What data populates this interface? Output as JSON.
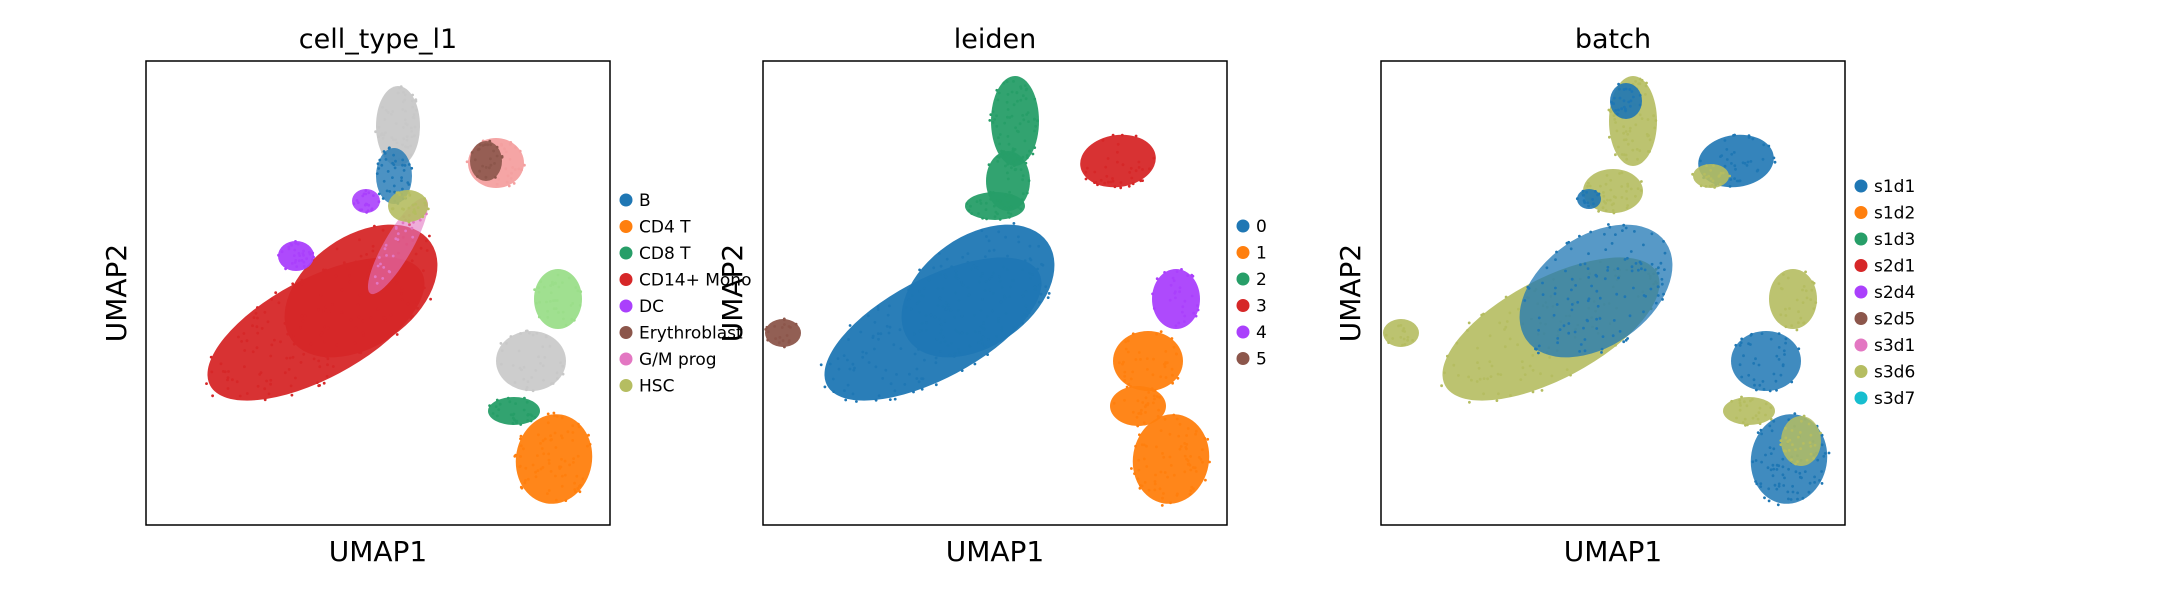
{
  "chart_data": [
    {
      "type": "scatter",
      "title": "cell_type_l1",
      "xlabel": "UMAP1",
      "ylabel": "UMAP2",
      "legend_position": "right",
      "legend": [
        {
          "label": "B",
          "color": "#1f77b4"
        },
        {
          "label": "CD4 T",
          "color": "#ff7f0e"
        },
        {
          "label": "CD8 T",
          "color": "#279e68"
        },
        {
          "label": "CD14+ Mono",
          "color": "#d62728"
        },
        {
          "label": "DC",
          "color": "#aa40fc"
        },
        {
          "label": "Erythroblast",
          "color": "#8c564b"
        },
        {
          "label": "G/M prog",
          "color": "#e377c2"
        },
        {
          "label": "HSC",
          "color": "#b5bd61"
        }
      ]
    },
    {
      "type": "scatter",
      "title": "leiden",
      "xlabel": "UMAP1",
      "ylabel": "UMAP2",
      "legend_position": "right",
      "legend": [
        {
          "label": "0",
          "color": "#1f77b4"
        },
        {
          "label": "1",
          "color": "#ff7f0e"
        },
        {
          "label": "2",
          "color": "#279e68"
        },
        {
          "label": "3",
          "color": "#d62728"
        },
        {
          "label": "4",
          "color": "#aa40fc"
        },
        {
          "label": "5",
          "color": "#8c564b"
        }
      ]
    },
    {
      "type": "scatter",
      "title": "batch",
      "xlabel": "UMAP1",
      "ylabel": "UMAP2",
      "legend_position": "right",
      "legend": [
        {
          "label": "s1d1",
          "color": "#1f77b4"
        },
        {
          "label": "s1d2",
          "color": "#ff7f0e"
        },
        {
          "label": "s1d3",
          "color": "#279e68"
        },
        {
          "label": "s2d1",
          "color": "#d62728"
        },
        {
          "label": "s2d4",
          "color": "#aa40fc"
        },
        {
          "label": "s2d5",
          "color": "#8c564b"
        },
        {
          "label": "s3d1",
          "color": "#e377c2"
        },
        {
          "label": "s3d6",
          "color": "#b5bd61"
        },
        {
          "label": "s3d7",
          "color": "#17becf"
        }
      ]
    }
  ]
}
